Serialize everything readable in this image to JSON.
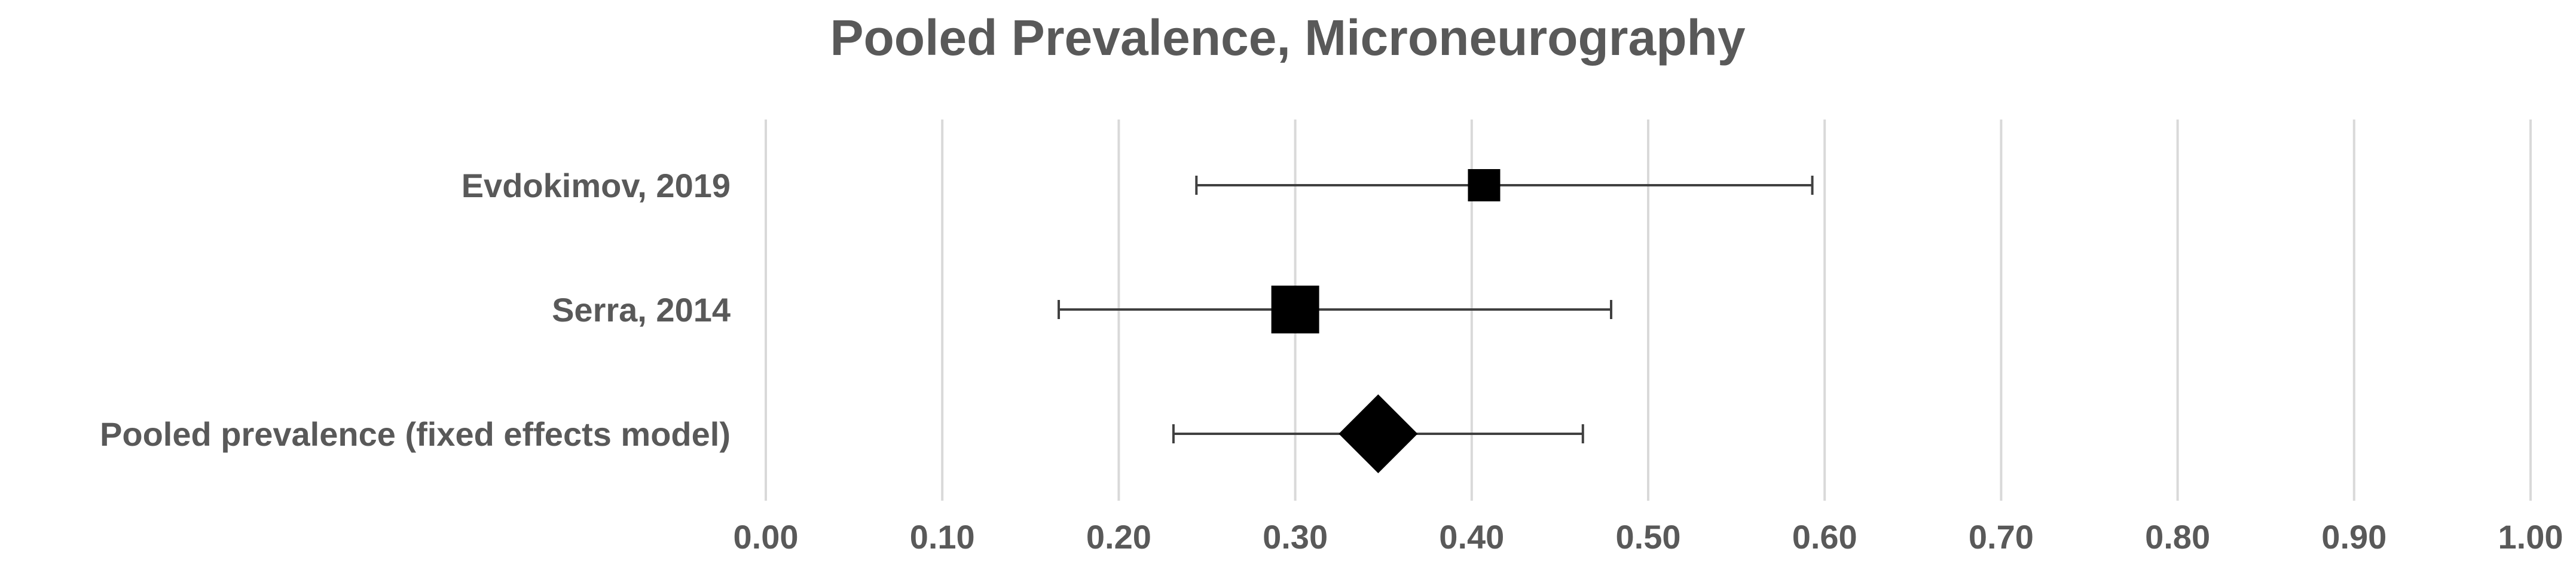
{
  "chart_data": {
    "type": "forest",
    "title": "Pooled Prevalence, Microneurography",
    "xlim": [
      0,
      1
    ],
    "x_ticks": [
      "0.00",
      "0.10",
      "0.20",
      "0.30",
      "0.40",
      "0.50",
      "0.60",
      "0.70",
      "0.80",
      "0.90",
      "1.00"
    ],
    "grid": "vertical",
    "rows": [
      {
        "label": "Evdokimov, 2019",
        "estimate": 0.407,
        "ci_low": 0.244,
        "ci_high": 0.593,
        "marker": "square-small"
      },
      {
        "label": "Serra, 2014",
        "estimate": 0.3,
        "ci_low": 0.166,
        "ci_high": 0.479,
        "marker": "square-large"
      },
      {
        "label": "Pooled prevalence (fixed effects model)",
        "estimate": 0.347,
        "ci_low": 0.231,
        "ci_high": 0.463,
        "marker": "diamond"
      }
    ]
  }
}
